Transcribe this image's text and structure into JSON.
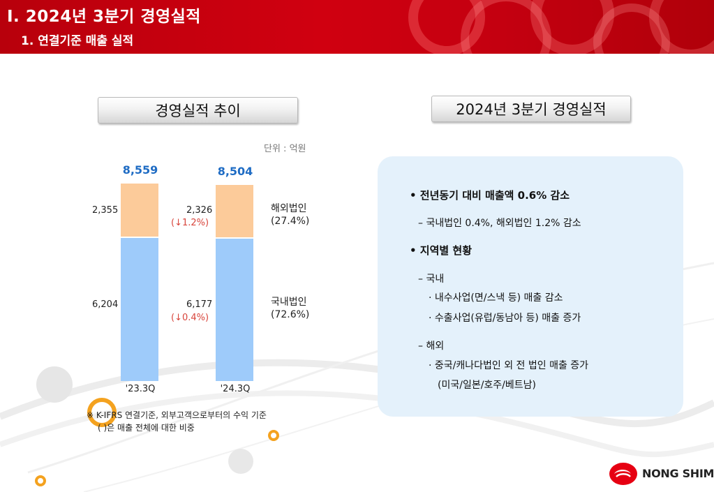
{
  "header": {
    "title": "Ⅰ. 2024년 3분기 경영실적",
    "subtitle": "1. 연결기준 매출 실적"
  },
  "left_section": {
    "title": "경영실적 추이"
  },
  "right_section": {
    "title": "2024년 3분기 경영실적"
  },
  "unit_label": "단위 : 억원",
  "chart_data": {
    "type": "bar",
    "stacked": true,
    "categories": [
      "'23.3Q",
      "'24.3Q"
    ],
    "series": [
      {
        "name": "국내법인",
        "share": "(72.6%)",
        "values": [
          6204,
          6177
        ],
        "labels": [
          "6,204",
          "6,177"
        ],
        "changes": [
          "",
          "(↓0.4%)"
        ],
        "color": "#9ecbfa"
      },
      {
        "name": "해외법인",
        "share": "(27.4%)",
        "values": [
          2355,
          2326
        ],
        "labels": [
          "2,355",
          "2,326"
        ],
        "changes": [
          "",
          "(↓1.2%)"
        ],
        "color": "#fccb9a"
      }
    ],
    "totals": [
      "8,559",
      "8,504"
    ],
    "total_values": [
      8559,
      8504
    ],
    "total_color": "#1f6cc4",
    "change_color": "#d8453c"
  },
  "note": {
    "line1": "※ K-IFRS 연결기준, 외부고객으로부터의 수익 기준",
    "line2": "( )은 매출 전체에 대한 비중"
  },
  "summary": {
    "b1": "• 전년동기 대비 매출액 0.6% 감소",
    "b1_sub": "– 국내법인 0.4%, 해외법인 1.2% 감소",
    "b2": "• 지역별 현황",
    "domestic_head": "– 국내",
    "domestic_items": [
      "· 내수사업(면/스낵 등) 매출 감소",
      "· 수출사업(유럽/동남아 등) 매출 증가"
    ],
    "overseas_head": "– 해외",
    "overseas_items": [
      "· 중국/캐나다법인 외 전 법인 매출 증가",
      "(미국/일본/호주/베트남)"
    ]
  },
  "logo": {
    "text": "NONG SHIM",
    "icon": "nongshim-logo-icon",
    "color": "#e60012"
  },
  "colors": {
    "header_red": "#c8000e",
    "panel_bg": "#e4f1fb"
  }
}
